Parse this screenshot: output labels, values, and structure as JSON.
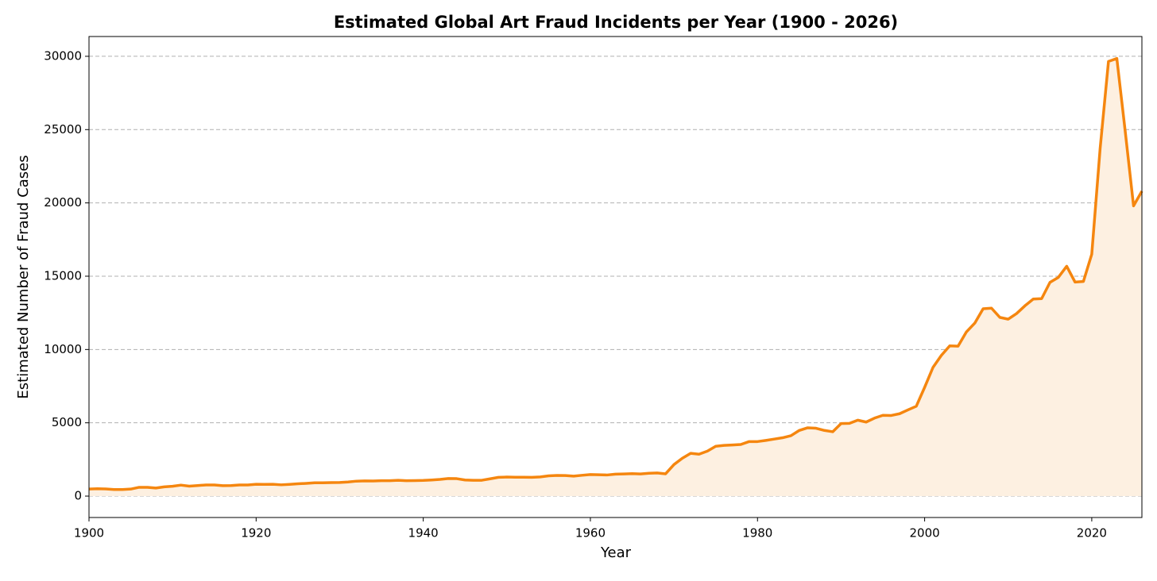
{
  "chart_data": {
    "type": "area-line",
    "title": "Estimated Global Art Fraud Incidents per Year (1900 - 2026)",
    "xlabel": "Year",
    "ylabel": "Estimated Number of Fraud Cases",
    "x": [
      1900,
      1901,
      1902,
      1903,
      1904,
      1905,
      1906,
      1907,
      1908,
      1909,
      1910,
      1911,
      1912,
      1913,
      1914,
      1915,
      1916,
      1917,
      1918,
      1919,
      1920,
      1921,
      1922,
      1923,
      1924,
      1925,
      1926,
      1927,
      1928,
      1929,
      1930,
      1931,
      1932,
      1933,
      1934,
      1935,
      1936,
      1937,
      1938,
      1939,
      1940,
      1941,
      1942,
      1943,
      1944,
      1945,
      1946,
      1947,
      1948,
      1949,
      1950,
      1951,
      1952,
      1953,
      1954,
      1955,
      1956,
      1957,
      1958,
      1959,
      1960,
      1961,
      1962,
      1963,
      1964,
      1965,
      1966,
      1967,
      1968,
      1969,
      1970,
      1971,
      1972,
      1973,
      1974,
      1975,
      1976,
      1977,
      1978,
      1979,
      1980,
      1981,
      1982,
      1983,
      1984,
      1985,
      1986,
      1987,
      1988,
      1989,
      1990,
      1991,
      1992,
      1993,
      1994,
      1995,
      1996,
      1997,
      1998,
      1999,
      2000,
      2001,
      2002,
      2003,
      2004,
      2005,
      2006,
      2007,
      2008,
      2009,
      2010,
      2011,
      2012,
      2013,
      2014,
      2015,
      2016,
      2017,
      2018,
      2019,
      2020,
      2021,
      2022,
      2023,
      2024,
      2025,
      2026
    ],
    "values": [
      480,
      500,
      490,
      450,
      450,
      480,
      600,
      600,
      550,
      630,
      670,
      750,
      680,
      720,
      760,
      760,
      710,
      720,
      760,
      760,
      810,
      800,
      810,
      770,
      800,
      840,
      870,
      910,
      910,
      920,
      930,
      960,
      1020,
      1040,
      1030,
      1050,
      1050,
      1080,
      1050,
      1060,
      1070,
      1100,
      1140,
      1200,
      1190,
      1100,
      1080,
      1080,
      1180,
      1280,
      1300,
      1290,
      1290,
      1280,
      1310,
      1380,
      1410,
      1400,
      1360,
      1420,
      1470,
      1460,
      1440,
      1500,
      1510,
      1530,
      1510,
      1560,
      1580,
      1520,
      2150,
      2580,
      2920,
      2860,
      3070,
      3400,
      3460,
      3490,
      3520,
      3720,
      3720,
      3800,
      3890,
      3980,
      4120,
      4480,
      4660,
      4630,
      4480,
      4390,
      4950,
      4960,
      5180,
      5050,
      5320,
      5510,
      5500,
      5620,
      5880,
      6130,
      7420,
      8780,
      9600,
      10250,
      10230,
      11200,
      11800,
      12780,
      12820,
      12190,
      12070,
      12450,
      12980,
      13440,
      13470,
      14580,
      14920,
      15680,
      14600,
      14640,
      16500,
      23700,
      29650,
      29850,
      24900,
      19800,
      20800
    ],
    "color": "#f5860f",
    "area_color": "#fdf0e1",
    "xlim": [
      1900,
      2026
    ],
    "xticks": [
      1900,
      1920,
      1940,
      1960,
      1980,
      2000,
      2020
    ],
    "ylim": [
      -1460,
      31350
    ],
    "yticks": [
      0,
      5000,
      10000,
      15000,
      20000,
      25000,
      30000
    ],
    "grid": true
  }
}
